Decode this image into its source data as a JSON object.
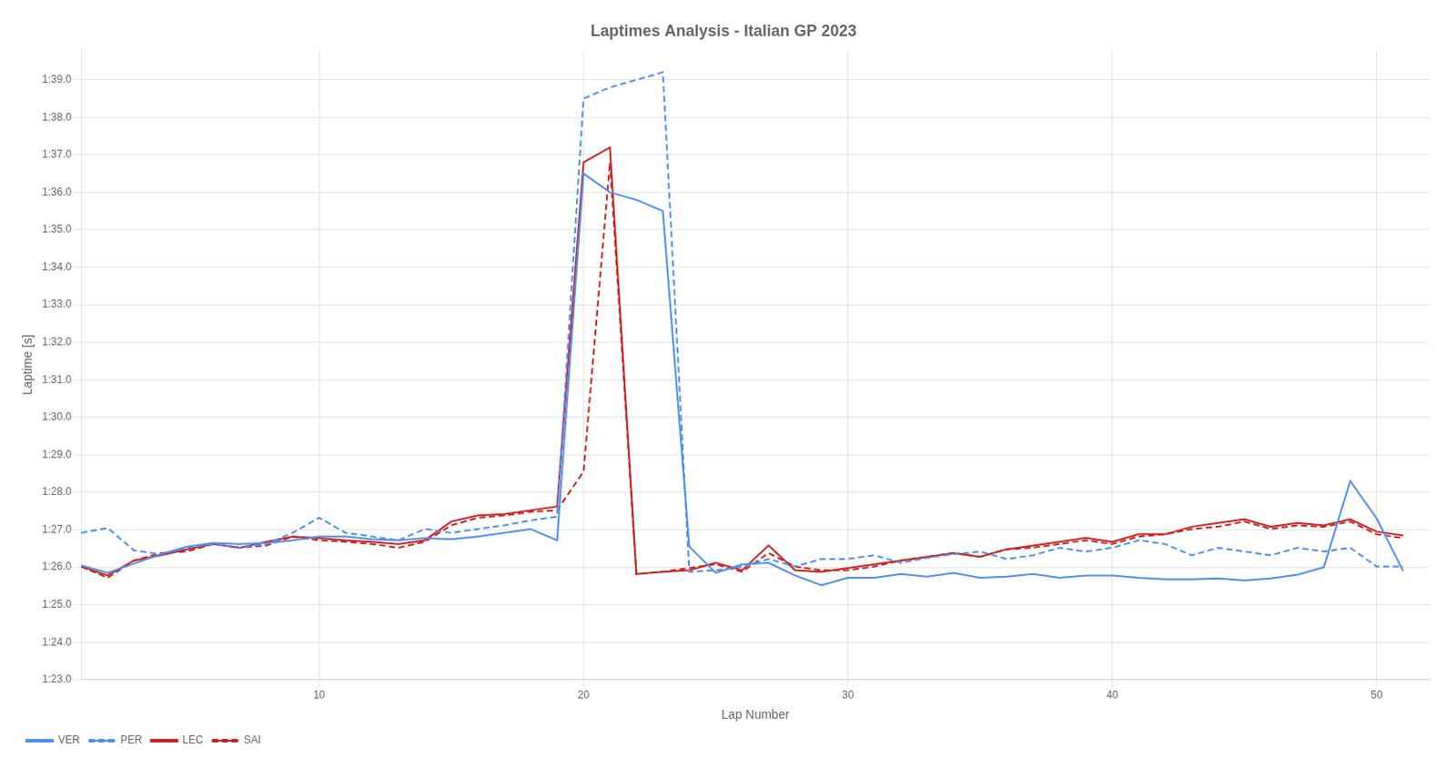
{
  "chart_data": {
    "type": "line",
    "title": "Laptimes Analysis - Italian GP 2023",
    "xlabel": "Lap Number",
    "ylabel": "Laptime [s]",
    "x": [
      1,
      2,
      3,
      4,
      5,
      6,
      7,
      8,
      9,
      10,
      11,
      12,
      13,
      14,
      15,
      16,
      17,
      18,
      19,
      20,
      21,
      22,
      23,
      24,
      25,
      26,
      27,
      28,
      29,
      30,
      31,
      32,
      33,
      34,
      35,
      36,
      37,
      38,
      39,
      40,
      41,
      42,
      43,
      44,
      45,
      46,
      47,
      48,
      49,
      50,
      51
    ],
    "series": [
      {
        "name": "VER",
        "color": "#4d8ef0",
        "line_style": "solid",
        "values": [
          86.05,
          85.85,
          86.1,
          86.35,
          86.55,
          86.65,
          86.62,
          86.65,
          86.72,
          86.82,
          86.82,
          86.75,
          86.72,
          86.78,
          86.75,
          86.82,
          86.92,
          87.02,
          86.72,
          96.5,
          96.0,
          95.8,
          95.5,
          86.55,
          85.85,
          86.08,
          86.12,
          85.78,
          85.52,
          85.72,
          85.72,
          85.82,
          85.75,
          85.85,
          85.72,
          85.75,
          85.82,
          85.72,
          85.78,
          85.78,
          85.72,
          85.68,
          85.68,
          85.7,
          85.65,
          85.7,
          85.8,
          86.0,
          88.3,
          87.3,
          85.9
        ]
      },
      {
        "name": "PER",
        "color": "#4d8ef0",
        "line_style": "dashed",
        "values": [
          86.92,
          87.05,
          86.45,
          86.35,
          86.52,
          86.62,
          86.52,
          86.62,
          86.92,
          87.32,
          86.92,
          86.82,
          86.72,
          87.02,
          86.92,
          87.02,
          87.12,
          87.25,
          87.35,
          98.5,
          98.8,
          99.0,
          99.2,
          85.88,
          85.92,
          86.02,
          86.22,
          86.02,
          86.22,
          86.22,
          86.32,
          86.12,
          86.25,
          86.35,
          86.42,
          86.22,
          86.32,
          86.52,
          86.42,
          86.52,
          86.72,
          86.62,
          86.32,
          86.52,
          86.42,
          86.32,
          86.52,
          86.42,
          86.52,
          86.02,
          86.02
        ]
      },
      {
        "name": "LEC",
        "color": "#cc2222",
        "line_style": "solid",
        "values": [
          86.02,
          85.78,
          86.18,
          86.32,
          86.48,
          86.62,
          86.52,
          86.68,
          86.82,
          86.78,
          86.72,
          86.68,
          86.62,
          86.72,
          87.22,
          87.38,
          87.42,
          87.52,
          87.62,
          96.8,
          97.2,
          85.82,
          85.88,
          85.92,
          86.12,
          85.92,
          86.58,
          85.92,
          85.88,
          85.98,
          86.08,
          86.18,
          86.28,
          86.38,
          86.28,
          86.48,
          86.58,
          86.68,
          86.78,
          86.68,
          86.88,
          86.88,
          87.08,
          87.18,
          87.28,
          87.08,
          87.18,
          87.12,
          87.28,
          86.95,
          86.85
        ]
      },
      {
        "name": "SAI",
        "color": "#cc2222",
        "line_style": "dashed",
        "values": [
          86.02,
          85.72,
          86.18,
          86.38,
          86.42,
          86.62,
          86.52,
          86.58,
          86.82,
          86.72,
          86.68,
          86.62,
          86.52,
          86.68,
          87.12,
          87.32,
          87.38,
          87.48,
          87.52,
          88.55,
          96.8,
          85.82,
          85.88,
          85.98,
          86.08,
          85.88,
          86.38,
          86.02,
          85.92,
          85.92,
          86.02,
          86.18,
          86.28,
          86.38,
          86.28,
          86.48,
          86.52,
          86.62,
          86.72,
          86.62,
          86.82,
          86.88,
          87.02,
          87.08,
          87.22,
          87.02,
          87.12,
          87.08,
          87.22,
          86.88,
          86.78
        ]
      }
    ],
    "xlim": [
      1,
      52
    ],
    "xticks": [
      10,
      20,
      30,
      40,
      50
    ],
    "ylim": [
      83.0,
      99.8
    ],
    "yticks": [
      {
        "value": 83.0,
        "label": "1:23.0"
      },
      {
        "value": 84.0,
        "label": "1:24.0"
      },
      {
        "value": 85.0,
        "label": "1:25.0"
      },
      {
        "value": 86.0,
        "label": "1:26.0"
      },
      {
        "value": 87.0,
        "label": "1:27.0"
      },
      {
        "value": 88.0,
        "label": "1:28.0"
      },
      {
        "value": 89.0,
        "label": "1:29.0"
      },
      {
        "value": 90.0,
        "label": "1:30.0"
      },
      {
        "value": 91.0,
        "label": "1:31.0"
      },
      {
        "value": 92.0,
        "label": "1:32.0"
      },
      {
        "value": 93.0,
        "label": "1:33.0"
      },
      {
        "value": 94.0,
        "label": "1:34.0"
      },
      {
        "value": 95.0,
        "label": "1:35.0"
      },
      {
        "value": 96.0,
        "label": "1:36.0"
      },
      {
        "value": 97.0,
        "label": "1:37.0"
      },
      {
        "value": 98.0,
        "label": "1:38.0"
      },
      {
        "value": 99.0,
        "label": "1:39.0"
      }
    ],
    "grid": true,
    "legend": "lower left"
  }
}
